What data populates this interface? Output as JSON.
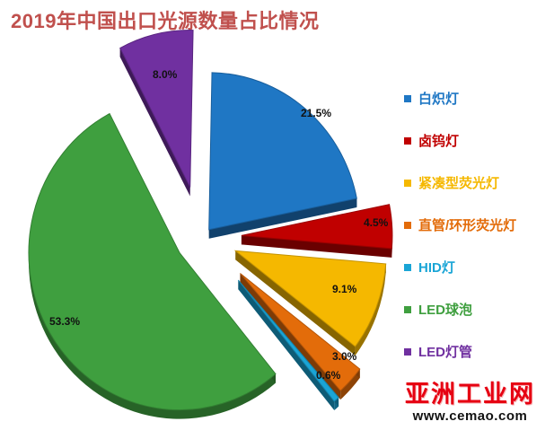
{
  "title": "2019年中国出口光源数量占比情况",
  "chart_data": {
    "type": "pie",
    "style": "3d-exploded",
    "title": "2019年中国出口光源数量占比情况",
    "legend_position": "right",
    "slices": [
      {
        "name": "白炽灯",
        "value": 21.5,
        "label": "21.5%",
        "color": "#1f77c4"
      },
      {
        "name": "卤钨灯",
        "value": 4.5,
        "label": "4.5%",
        "color": "#c00000"
      },
      {
        "name": "紧凑型荧光灯",
        "value": 9.1,
        "label": "9.1%",
        "color": "#f5b800"
      },
      {
        "name": "直管/环形荧光灯",
        "value": 3.0,
        "label": "3.0%",
        "color": "#e36c0a"
      },
      {
        "name": "HID灯",
        "value": 0.6,
        "label": "0.6%",
        "color": "#1aa5d6"
      },
      {
        "name": "LED球泡",
        "value": 53.3,
        "label": "53.3%",
        "color": "#3f9f3f"
      },
      {
        "name": "LED灯管",
        "value": 8.0,
        "label": "8.0%",
        "color": "#7030a0"
      }
    ]
  },
  "watermark": {
    "logo": "亚洲工业网",
    "site": "www.cemao.com"
  }
}
